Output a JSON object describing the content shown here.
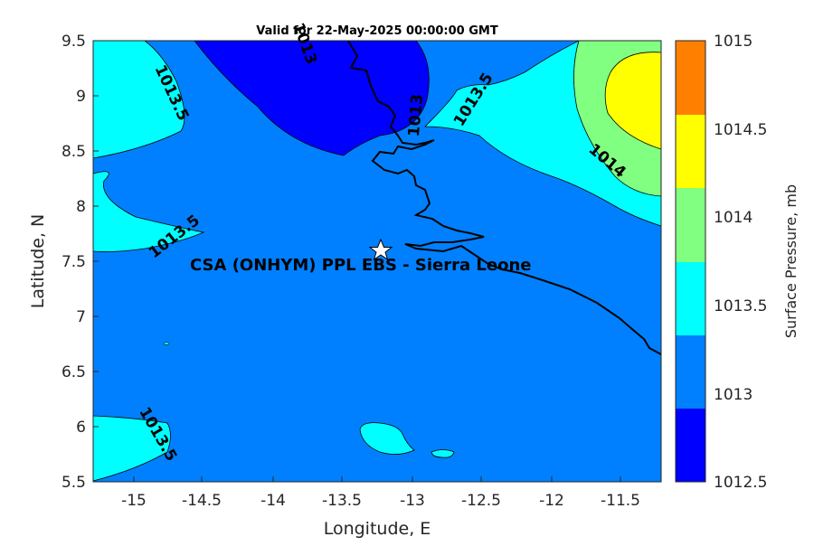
{
  "title": "Valid for 22-May-2025 00:00:00 GMT",
  "xlabel": "Longitude, E",
  "ylabel": "Latitude, N",
  "x_ticks": [
    "-15",
    "-14.5",
    "-14",
    "-13.5",
    "-13",
    "-12.5",
    "-12",
    "-11.5"
  ],
  "y_ticks": [
    "9.5",
    "9",
    "8.5",
    "8",
    "7.5",
    "7",
    "6.5",
    "6",
    "5.5"
  ],
  "colorbar": {
    "label": "Surface Pressure, mb",
    "ticks": [
      "1015",
      "1014.5",
      "1014",
      "1013.5",
      "1013",
      "1012.5"
    ],
    "colors": [
      "#ff8000",
      "#ffff00",
      "#80ff80",
      "#00ffff",
      "#0080ff",
      "#0000ff"
    ]
  },
  "site_label": "CSA (ONHYM) PPL EBS  - Sierra Leone",
  "contour_labels": [
    "1013.5",
    "1013.5",
    "1013.5",
    "1013",
    "1013.5",
    "1014",
    "1013"
  ],
  "chart_data": {
    "type": "heatmap",
    "title": "Valid for 22-May-2025 00:00:00 GMT",
    "xlabel": "Longitude, E",
    "ylabel": "Latitude, N",
    "xlim": [
      -15.25,
      -11.25
    ],
    "ylim": [
      5.5,
      9.5
    ],
    "colorbar_label": "Surface Pressure, mb",
    "levels": [
      1012.5,
      1013,
      1013.5,
      1014,
      1014.5,
      1015
    ],
    "site": {
      "name": "CSA (ONHYM) PPL EBS  - Sierra Leone",
      "lon": -13.25,
      "lat": 7.6
    }
  }
}
